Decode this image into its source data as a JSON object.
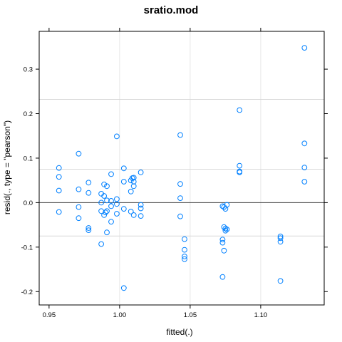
{
  "chart_data": {
    "type": "scatter",
    "title": "sratio.mod",
    "xlabel": "fitted(.)",
    "ylabel": "resid(., type = \"pearson\")",
    "xlim": [
      0.943,
      1.145
    ],
    "ylim": [
      -0.23,
      0.385
    ],
    "xticks": [
      0.95,
      1.0,
      1.05,
      1.1
    ],
    "xtick_labels": [
      "0.95",
      "1.00",
      "1.05",
      "1.10"
    ],
    "yticks": [
      -0.2,
      -0.1,
      0.0,
      0.1,
      0.2,
      0.3
    ],
    "ytick_labels": [
      "-0.2",
      "-0.1",
      "0.0",
      "0.1",
      "0.2",
      "0.3"
    ],
    "x_gridlines": [
      1.0,
      1.05,
      1.1
    ],
    "y_reflines": [
      0.232,
      0.075,
      -0.075
    ],
    "zero_line": 0,
    "point_color": "#0080ff",
    "points": [
      [
        0.957,
        0.078
      ],
      [
        0.957,
        0.058
      ],
      [
        0.957,
        0.027
      ],
      [
        0.957,
        -0.021
      ],
      [
        0.971,
        0.11
      ],
      [
        0.971,
        0.03
      ],
      [
        0.971,
        -0.01
      ],
      [
        0.971,
        -0.035
      ],
      [
        0.978,
        0.045
      ],
      [
        0.978,
        0.022
      ],
      [
        0.978,
        -0.057
      ],
      [
        0.978,
        -0.062
      ],
      [
        0.987,
        0.02
      ],
      [
        0.987,
        0.0
      ],
      [
        0.987,
        -0.019
      ],
      [
        0.987,
        -0.093
      ],
      [
        0.989,
        0.041
      ],
      [
        0.989,
        0.015
      ],
      [
        0.989,
        -0.028
      ],
      [
        0.99,
        -0.022
      ],
      [
        0.991,
        0.037
      ],
      [
        0.991,
        0.005
      ],
      [
        0.991,
        -0.019
      ],
      [
        0.991,
        -0.067
      ],
      [
        0.994,
        0.064
      ],
      [
        0.994,
        0.004
      ],
      [
        0.994,
        -0.008
      ],
      [
        0.994,
        -0.043
      ],
      [
        0.998,
        0.149
      ],
      [
        0.998,
        0.008
      ],
      [
        0.998,
        -0.003
      ],
      [
        0.998,
        -0.025
      ],
      [
        1.003,
        0.077
      ],
      [
        1.003,
        0.047
      ],
      [
        1.003,
        -0.014
      ],
      [
        1.003,
        -0.192
      ],
      [
        1.008,
        0.05
      ],
      [
        1.008,
        0.025
      ],
      [
        1.008,
        -0.02
      ],
      [
        1.009,
        0.055
      ],
      [
        1.01,
        0.056
      ],
      [
        1.01,
        0.047
      ],
      [
        1.01,
        0.037
      ],
      [
        1.01,
        -0.028
      ],
      [
        1.015,
        0.068
      ],
      [
        1.015,
        -0.005
      ],
      [
        1.015,
        -0.013
      ],
      [
        1.015,
        -0.03
      ],
      [
        1.043,
        0.152
      ],
      [
        1.043,
        0.042
      ],
      [
        1.043,
        0.01
      ],
      [
        1.043,
        -0.031
      ],
      [
        1.046,
        -0.082
      ],
      [
        1.046,
        -0.106
      ],
      [
        1.046,
        -0.121
      ],
      [
        1.046,
        -0.127
      ],
      [
        1.073,
        -0.008
      ],
      [
        1.073,
        -0.083
      ],
      [
        1.073,
        -0.09
      ],
      [
        1.073,
        -0.167
      ],
      [
        1.074,
        -0.01
      ],
      [
        1.074,
        -0.055
      ],
      [
        1.074,
        -0.108
      ],
      [
        1.075,
        -0.014
      ],
      [
        1.075,
        -0.058
      ],
      [
        1.075,
        -0.063
      ],
      [
        1.076,
        -0.005
      ],
      [
        1.076,
        -0.06
      ],
      [
        1.085,
        0.208
      ],
      [
        1.085,
        0.083
      ],
      [
        1.085,
        0.07
      ],
      [
        1.085,
        0.068
      ],
      [
        1.114,
        -0.076
      ],
      [
        1.114,
        -0.08
      ],
      [
        1.114,
        -0.088
      ],
      [
        1.114,
        -0.176
      ],
      [
        1.131,
        0.348
      ],
      [
        1.131,
        0.133
      ],
      [
        1.131,
        0.079
      ],
      [
        1.131,
        0.047
      ]
    ]
  }
}
